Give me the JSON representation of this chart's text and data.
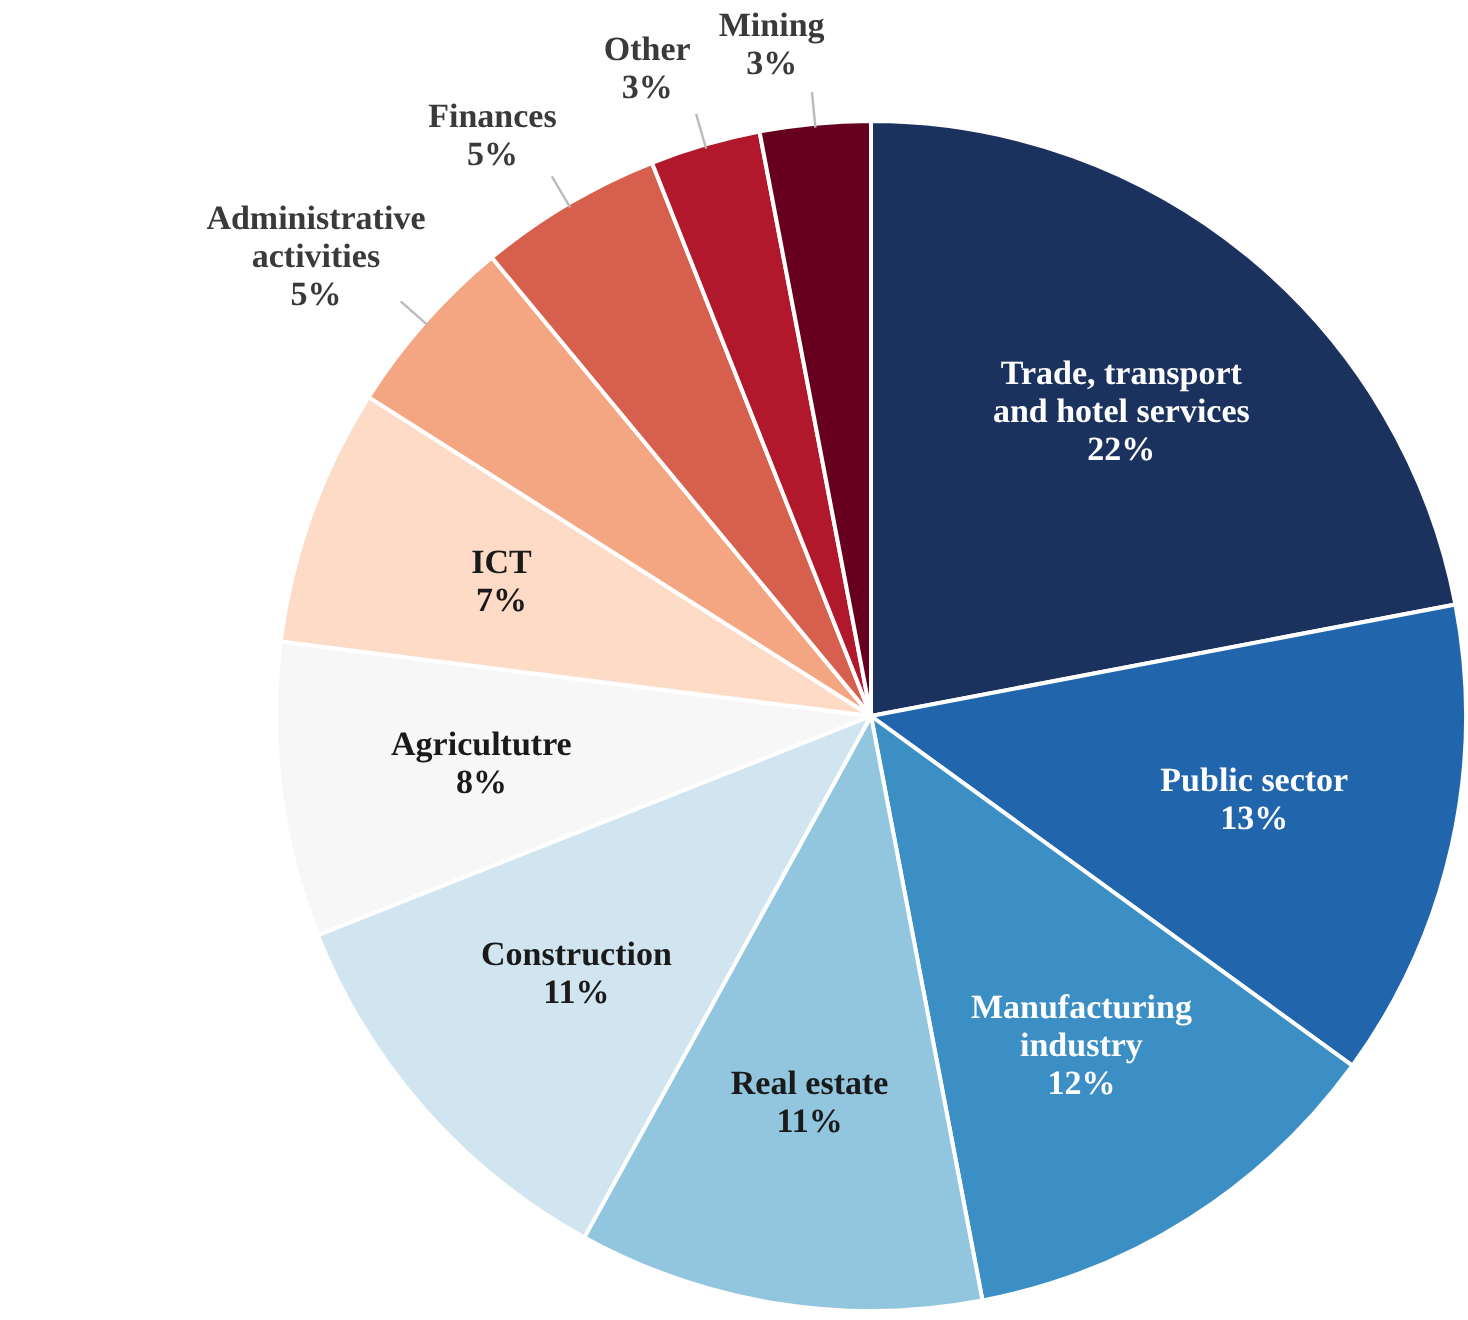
{
  "chart_data": {
    "type": "pie",
    "categories": [
      "Trade, transport and hotel services",
      "Public sector",
      "Manufacturing industry",
      "Real estate",
      "Construction",
      "Agricultutre",
      "ICT",
      "Administrative activities",
      "Finances",
      "Other",
      "Mining"
    ],
    "values": [
      22,
      13,
      12,
      11,
      11,
      8,
      7,
      5,
      5,
      3,
      3
    ],
    "value_labels": [
      "22%",
      "13%",
      "12%",
      "11%",
      "11%",
      "8%",
      "7%",
      "5%",
      "5%",
      "3%",
      "3%"
    ],
    "colors": [
      "#1c325e",
      "#2166ac",
      "#3b8fc4",
      "#92c5de",
      "#d1e5f0",
      "#f7f7f7",
      "#fddbc7",
      "#f4a582",
      "#d6604d",
      "#b2182b",
      "#67001f"
    ],
    "legend": false
  }
}
